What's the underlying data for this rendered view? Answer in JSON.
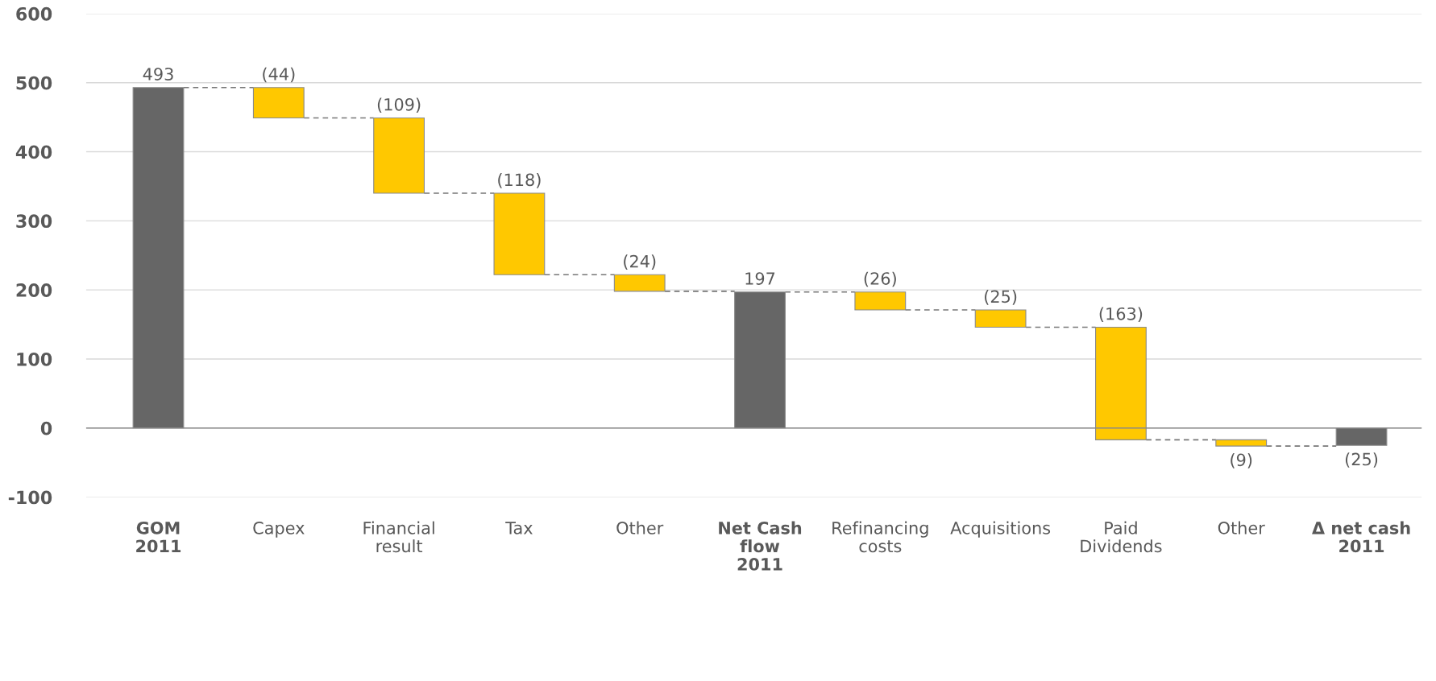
{
  "chart_data": {
    "type": "bar",
    "categories": [
      "GOM\n2011",
      "Capex",
      "Financial\nresult",
      "Tax",
      "Other",
      "Net Cash\nflow\n2011",
      "Refinancing\ncosts",
      "Acquisitions",
      "Paid\nDividends",
      "Other",
      "Δ net cash\n2011"
    ],
    "values": [
      493,
      -44,
      -109,
      -118,
      -24,
      197,
      -26,
      -25,
      -163,
      -9,
      -25
    ],
    "base": [
      0,
      493,
      449,
      340,
      222,
      0,
      197,
      171,
      146,
      -17,
      0
    ],
    "colors": [
      "#666666",
      "#ffc800",
      "#ffc800",
      "#ffc800",
      "#ffc800",
      "#666666",
      "#ffc800",
      "#ffc800",
      "#ffc800",
      "#ffc800",
      "#666666"
    ],
    "value_labels": [
      "493",
      "(44)",
      "(109)",
      "(118)",
      "(24)",
      "197",
      "(26)",
      "(25)",
      "(163)",
      "(9)",
      "(25)"
    ],
    "ylim": [
      -100,
      600
    ],
    "yticks": [
      -100,
      0,
      100,
      200,
      300,
      400,
      500,
      600
    ],
    "grid": "y"
  }
}
